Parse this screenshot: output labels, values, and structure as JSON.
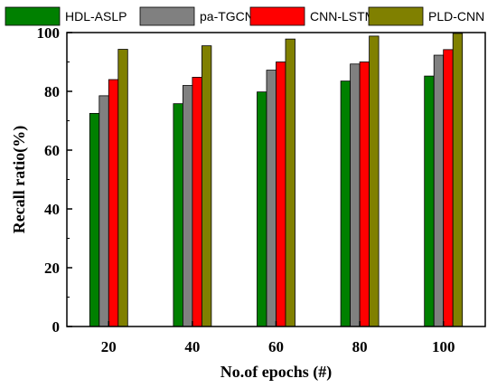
{
  "chart_data": {
    "type": "bar",
    "categories": [
      "20",
      "40",
      "60",
      "80",
      "100"
    ],
    "series": [
      {
        "name": "HDL-ASLP",
        "color": "#008000",
        "values": [
          72.5,
          75.8,
          79.8,
          83.5,
          85.2
        ]
      },
      {
        "name": "pa-TGCN",
        "color": "#808080",
        "values": [
          78.5,
          82.0,
          87.2,
          89.3,
          92.3
        ]
      },
      {
        "name": "CNN-LSTM",
        "color": "#ff0000",
        "values": [
          84.0,
          84.8,
          90.0,
          90.0,
          94.2
        ]
      },
      {
        "name": "PLD-CNN",
        "color": "#808000",
        "values": [
          94.3,
          95.5,
          97.8,
          98.8,
          99.7
        ]
      }
    ],
    "xlabel": "No.of epochs (#)",
    "ylabel": "Recall ratio(%)",
    "ylim": [
      0,
      100
    ],
    "yticks": [
      0,
      20,
      40,
      60,
      80,
      100
    ],
    "grid": false,
    "legend_position": "top"
  }
}
